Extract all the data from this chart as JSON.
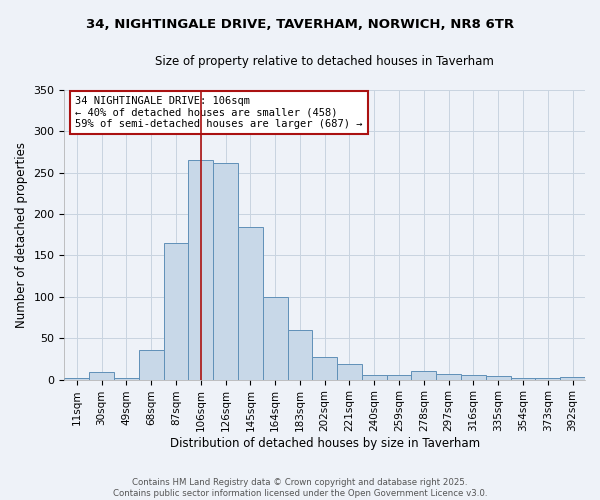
{
  "title_line1": "34, NIGHTINGALE DRIVE, TAVERHAM, NORWICH, NR8 6TR",
  "title_line2": "Size of property relative to detached houses in Taverham",
  "xlabel": "Distribution of detached houses by size in Taverham",
  "ylabel": "Number of detached properties",
  "categories": [
    "11sqm",
    "30sqm",
    "49sqm",
    "68sqm",
    "87sqm",
    "106sqm",
    "126sqm",
    "145sqm",
    "164sqm",
    "183sqm",
    "202sqm",
    "221sqm",
    "240sqm",
    "259sqm",
    "278sqm",
    "297sqm",
    "316sqm",
    "335sqm",
    "354sqm",
    "373sqm",
    "392sqm"
  ],
  "values": [
    2,
    9,
    2,
    36,
    165,
    265,
    262,
    185,
    100,
    60,
    27,
    19,
    5,
    5,
    10,
    7,
    6,
    4,
    2,
    2,
    3
  ],
  "bar_color": "#c8d8e8",
  "bar_edge_color": "#6090b8",
  "property_value_index": 5,
  "property_label": "34 NIGHTINGALE DRIVE: 106sqm",
  "annotation_line2": "← 40% of detached houses are smaller (458)",
  "annotation_line3": "59% of semi-detached houses are larger (687) →",
  "vline_color": "#aa1111",
  "annotation_box_edge_color": "#aa1111",
  "annotation_box_face_color": "#ffffff",
  "grid_color": "#c8d4e0",
  "background_color": "#eef2f8",
  "ylim": [
    0,
    350
  ],
  "yticks": [
    0,
    50,
    100,
    150,
    200,
    250,
    300,
    350
  ],
  "footnote": "Contains HM Land Registry data © Crown copyright and database right 2025.\nContains public sector information licensed under the Open Government Licence v3.0."
}
